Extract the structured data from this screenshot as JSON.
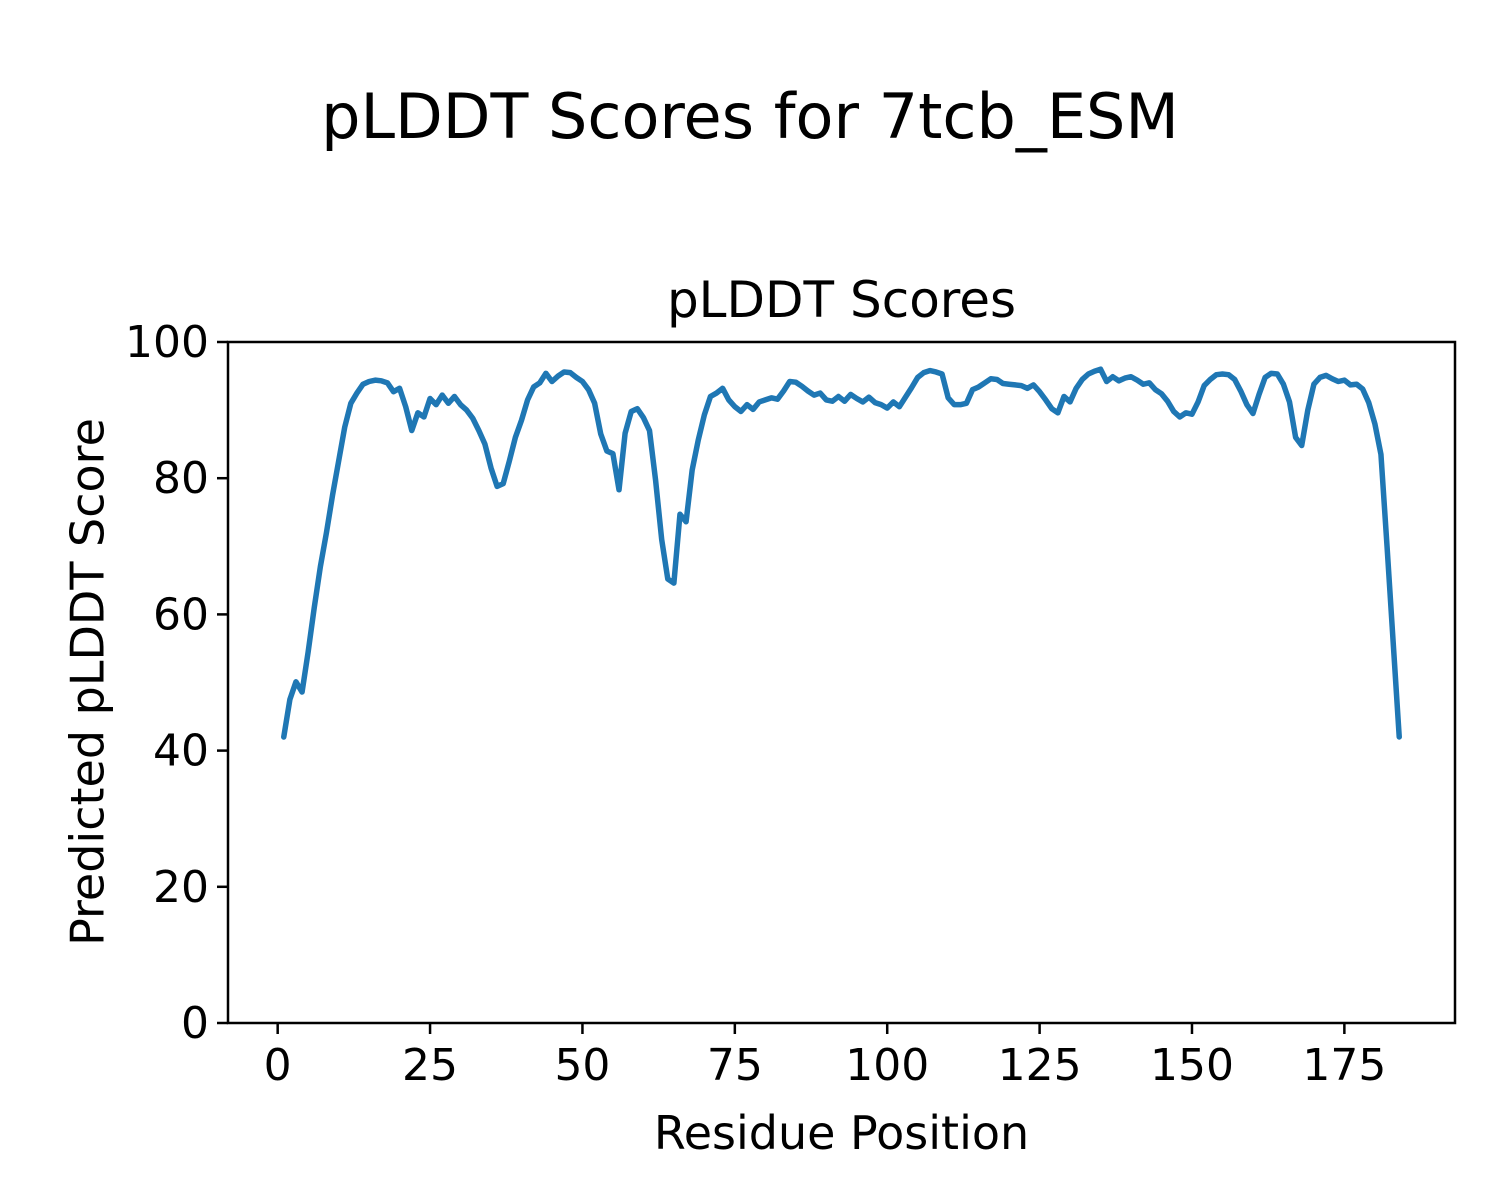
{
  "figure": {
    "suptitle": "pLDDT Scores for 7tcb_ESM",
    "axes_title": "pLDDT Scores",
    "xlabel": "Residue Position",
    "ylabel": "Predicted pLDDT Score"
  },
  "chart_data": {
    "type": "line",
    "title": "pLDDT Scores",
    "suptitle": "pLDDT Scores for 7tcb_ESM",
    "xlabel": "Residue Position",
    "ylabel": "Predicted pLDDT Score",
    "grid": false,
    "legend": false,
    "line_color": "#1f77b4",
    "axis_color": "#000000",
    "xticks": [
      0,
      25,
      50,
      75,
      100,
      125,
      150,
      175
    ],
    "yticks": [
      0,
      20,
      40,
      60,
      80,
      100
    ],
    "xlim": [
      -8.15,
      193.15
    ],
    "ylim": [
      0,
      100
    ],
    "x_start": 1,
    "series": [
      {
        "name": "pLDDT",
        "values": [
          42.0,
          47.5,
          50.1,
          48.6,
          54.5,
          61.0,
          67.0,
          72.0,
          77.5,
          82.5,
          87.5,
          91.0,
          92.5,
          93.8,
          94.2,
          94.4,
          94.3,
          94.0,
          92.7,
          93.2,
          90.5,
          87.0,
          89.6,
          89.0,
          91.7,
          90.8,
          92.2,
          91.0,
          92.0,
          90.8,
          90.0,
          88.8,
          87.0,
          85.0,
          81.5,
          78.8,
          79.2,
          82.5,
          86.0,
          88.5,
          91.5,
          93.4,
          94.0,
          95.4,
          94.2,
          95.0,
          95.6,
          95.5,
          94.8,
          94.2,
          93.0,
          91.0,
          86.5,
          84.0,
          83.6,
          78.3,
          86.6,
          89.8,
          90.2,
          88.9,
          87.0,
          79.7,
          71.0,
          65.2,
          64.6,
          74.7,
          73.6,
          81.2,
          85.6,
          89.3,
          92.0,
          92.5,
          93.2,
          91.5,
          90.5,
          89.8,
          90.8,
          90.1,
          91.2,
          91.5,
          91.8,
          91.6,
          92.8,
          94.2,
          94.1,
          93.5,
          92.8,
          92.2,
          92.5,
          91.5,
          91.3,
          92.0,
          91.3,
          92.3,
          91.7,
          91.2,
          91.9,
          91.1,
          90.8,
          90.3,
          91.2,
          90.5,
          91.9,
          93.3,
          94.8,
          95.5,
          95.8,
          95.6,
          95.3,
          91.8,
          90.8,
          90.8,
          91.0,
          93.0,
          93.4,
          94.0,
          94.6,
          94.5,
          93.9,
          93.8,
          93.7,
          93.6,
          93.2,
          93.7,
          92.7,
          91.5,
          90.2,
          89.6,
          92.0,
          91.2,
          93.2,
          94.5,
          95.3,
          95.7,
          96.0,
          94.2,
          94.9,
          94.3,
          94.7,
          94.9,
          94.4,
          93.8,
          94.0,
          93.0,
          92.4,
          91.3,
          89.8,
          89.0,
          89.6,
          89.4,
          91.2,
          93.6,
          94.5,
          95.2,
          95.3,
          95.2,
          94.5,
          92.8,
          90.8,
          89.5,
          92.3,
          94.8,
          95.4,
          95.3,
          93.8,
          91.2,
          86.0,
          84.8,
          90.0,
          93.8,
          94.8,
          95.1,
          94.6,
          94.2,
          94.4,
          93.7,
          93.8,
          93.1,
          91.1,
          88.0,
          83.5,
          70.0,
          56.0,
          42.0
        ]
      }
    ]
  }
}
